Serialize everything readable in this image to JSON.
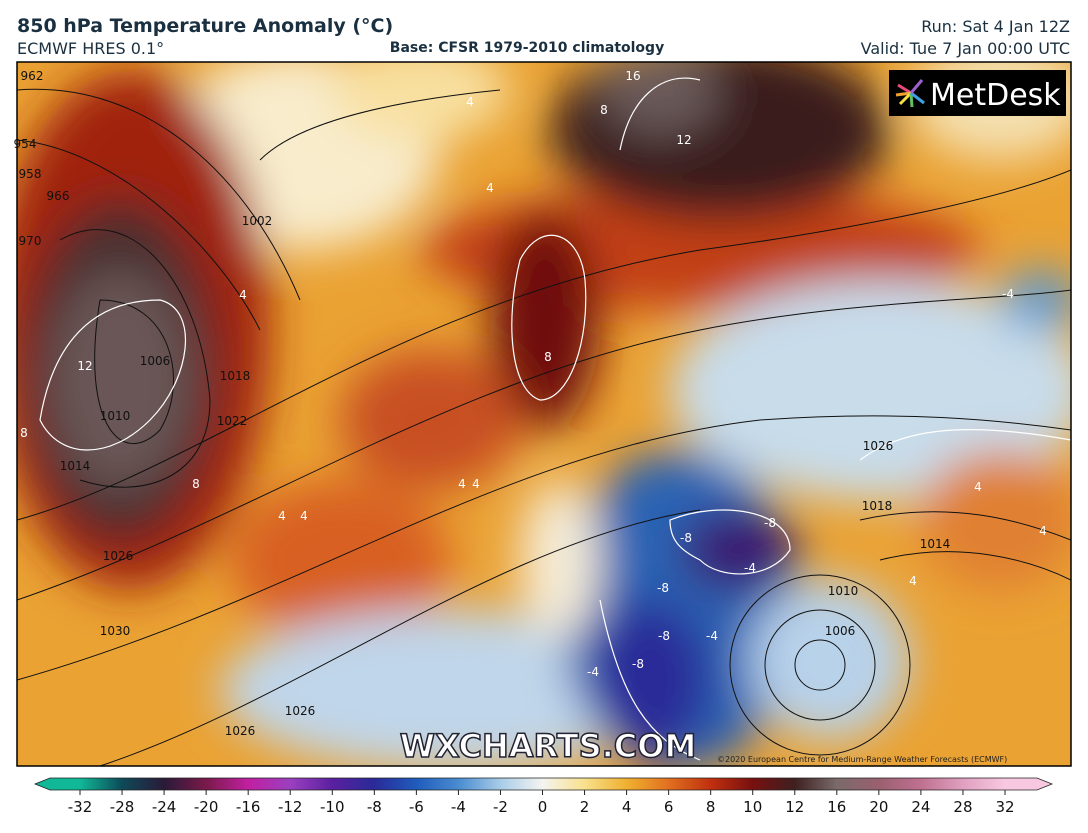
{
  "header": {
    "title": "850 hPa Temperature Anomaly (°C)",
    "model": "ECMWF HRES 0.1°",
    "base": "Base: CFSR 1979-2010 climatology",
    "run": "Run: Sat 4 Jan 12Z",
    "valid": "Valid: Tue 7 Jan 00:00 UTC"
  },
  "logo": "MetDesk",
  "watermark": "WXCHARTS.COM",
  "copyright": "©2020 European Centre for Medium-Range Weather Forecasts (ECMWF)",
  "colorbar": {
    "ticks": [
      -32,
      -28,
      -24,
      -20,
      -16,
      -12,
      -10,
      -8,
      -6,
      -4,
      -2,
      0,
      2,
      4,
      6,
      8,
      10,
      12,
      16,
      20,
      24,
      28,
      32
    ],
    "colors": [
      "#10b898",
      "#0d4a58",
      "#2a1a38",
      "#7a1a4a",
      "#c020a0",
      "#9a40c0",
      "#5a20a0",
      "#2a2a98",
      "#1f5cbc",
      "#4a8cd0",
      "#a8cce8",
      "#f4f4f0",
      "#f8e08c",
      "#f0b030",
      "#e07020",
      "#c0300e",
      "#781010",
      "#3e2020",
      "#7a6a6a",
      "#9a6070",
      "#c07090",
      "#e0a0c0",
      "#f8c8e0"
    ]
  },
  "map": {
    "isobar_labels": [
      "962",
      "954",
      "958",
      "966",
      "970",
      "1002",
      "1006",
      "1010",
      "1014",
      "1022",
      "1018",
      "1026",
      "1030",
      "1026",
      "1026",
      "1026",
      "1018",
      "1014",
      "1010",
      "1006"
    ],
    "anomaly_labels": [
      "16",
      "12",
      "8",
      "4",
      "4",
      "4",
      "12",
      "8",
      "8",
      "8",
      "4",
      "4",
      "4",
      "4",
      "-8",
      "-8",
      "-8",
      "-8",
      "-8",
      "-4",
      "-4",
      "-4",
      "-4",
      "4",
      "4",
      "4"
    ]
  }
}
